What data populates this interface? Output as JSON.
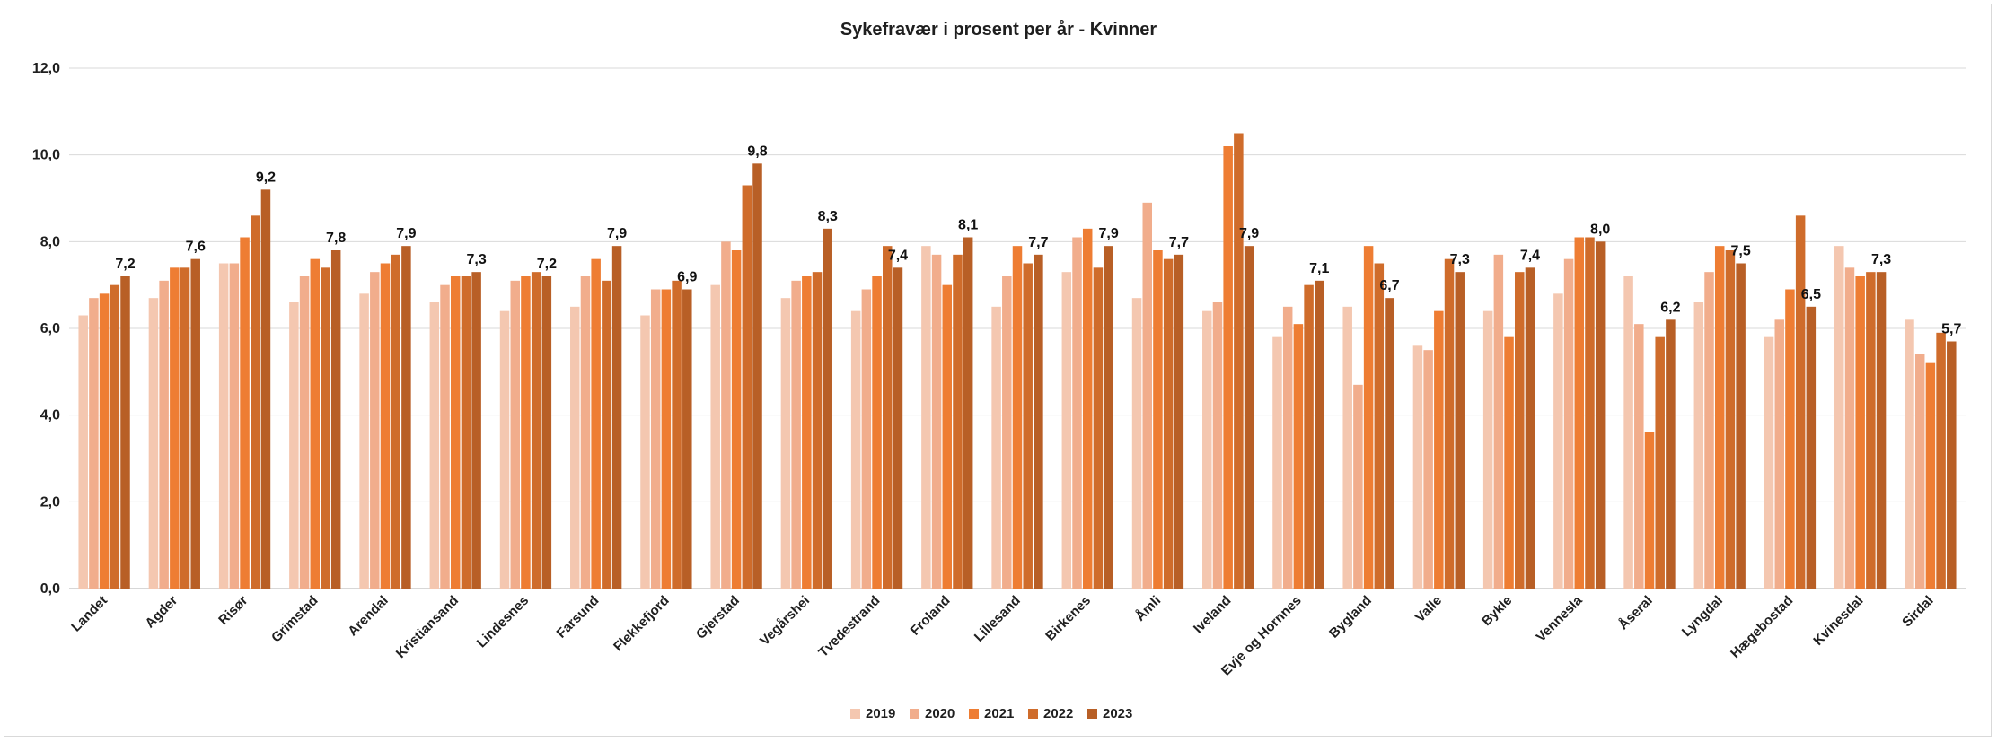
{
  "chart_data": {
    "type": "bar",
    "title": "Sykefravær i prosent per år - Kvinner",
    "xlabel": "",
    "ylabel": "",
    "ylim": [
      0,
      12
    ],
    "yticks": [
      "0,0",
      "2,0",
      "4,0",
      "6,0",
      "8,0",
      "10,0",
      "12,0"
    ],
    "grid": true,
    "legend_position": "bottom",
    "categories": [
      "Landet",
      "Agder",
      "Risør",
      "Grimstad",
      "Arendal",
      "Kristiansand",
      "Lindesnes",
      "Farsund",
      "Flekkefjord",
      "Gjerstad",
      "Vegårshei",
      "Tvedestrand",
      "Froland",
      "Lillesand",
      "Birkenes",
      "Åmli",
      "Iveland",
      "Evje og Hornnes",
      "Bygland",
      "Valle",
      "Bykle",
      "Vennesla",
      "Åseral",
      "Lyngdal",
      "Hægebostad",
      "Kvinesdal",
      "Sirdal"
    ],
    "series": [
      {
        "name": "2019",
        "color": "#f4c7b0",
        "values": [
          6.3,
          6.7,
          7.5,
          6.6,
          6.8,
          6.6,
          6.4,
          6.5,
          6.3,
          7.0,
          6.7,
          6.4,
          7.9,
          6.5,
          7.3,
          6.7,
          6.4,
          5.8,
          6.5,
          5.6,
          6.4,
          6.8,
          7.2,
          6.6,
          5.8,
          7.9,
          6.2
        ]
      },
      {
        "name": "2020",
        "color": "#f1ad8c",
        "values": [
          6.7,
          7.1,
          7.5,
          7.2,
          7.3,
          7.0,
          7.1,
          7.2,
          6.9,
          8.0,
          7.1,
          6.9,
          7.7,
          7.2,
          8.1,
          8.9,
          6.6,
          6.5,
          4.7,
          5.5,
          7.7,
          7.6,
          6.1,
          7.3,
          6.2,
          7.4,
          5.4
        ]
      },
      {
        "name": "2021",
        "color": "#ee7d33",
        "values": [
          6.8,
          7.4,
          8.1,
          7.6,
          7.5,
          7.2,
          7.2,
          7.6,
          6.9,
          7.8,
          7.2,
          7.2,
          7.0,
          7.9,
          8.3,
          7.8,
          10.2,
          6.1,
          7.9,
          6.4,
          5.8,
          8.1,
          3.6,
          7.9,
          6.9,
          7.2,
          5.2
        ]
      },
      {
        "name": "2022",
        "color": "#cf6c2b",
        "values": [
          7.0,
          7.4,
          8.6,
          7.4,
          7.7,
          7.2,
          7.3,
          7.1,
          7.1,
          9.3,
          7.3,
          7.9,
          7.7,
          7.5,
          7.4,
          7.6,
          10.5,
          7.0,
          7.5,
          7.6,
          7.3,
          8.1,
          5.8,
          7.8,
          8.6,
          7.3,
          5.9
        ]
      },
      {
        "name": "2023",
        "color": "#b85f26",
        "values": [
          7.2,
          7.6,
          9.2,
          7.8,
          7.9,
          7.3,
          7.2,
          7.9,
          6.9,
          9.8,
          8.3,
          7.4,
          8.1,
          7.7,
          7.9,
          7.7,
          7.9,
          7.1,
          6.7,
          7.3,
          7.4,
          8.0,
          6.2,
          7.5,
          6.5,
          7.3,
          5.7
        ]
      }
    ],
    "data_labels": [
      "7,2",
      "7,6",
      "9,2",
      "7,8",
      "7,9",
      "7,3",
      "7,2",
      "7,9",
      "6,9",
      "9,8",
      "8,3",
      "7,4",
      "8,1",
      "7,7",
      "7,9",
      "7,7",
      "7,9",
      "7,1",
      "6,7",
      "7,3",
      "7,4",
      "8,0",
      "6,2",
      "7,5",
      "6,5",
      "7,3",
      "5,7"
    ]
  }
}
